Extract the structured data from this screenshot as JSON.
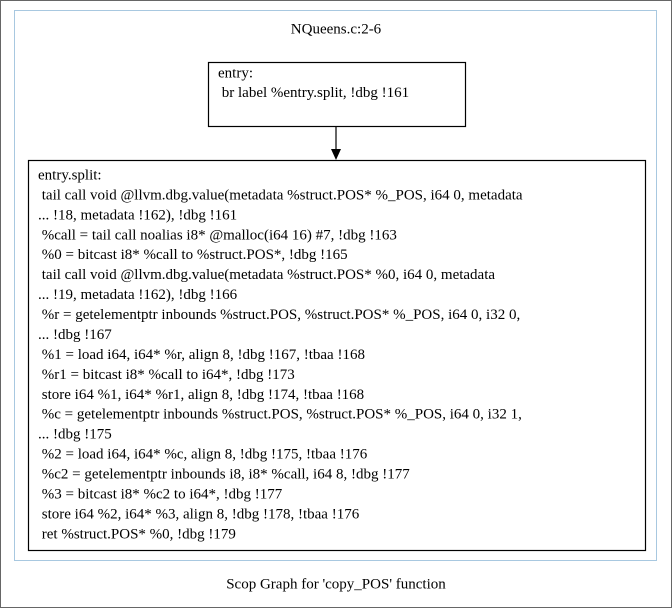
{
  "cluster": {
    "label": "NQueens.c:2-6"
  },
  "nodes": [
    {
      "lines": [
        "entry:",
        " br label %entry.split, !dbg !161"
      ]
    },
    {
      "lines": [
        "entry.split:",
        " tail call void @llvm.dbg.value(metadata %struct.POS* %_POS, i64 0, metadata",
        "... !18, metadata !162), !dbg !161",
        " %call = tail call noalias i8* @malloc(i64 16) #7, !dbg !163",
        " %0 = bitcast i8* %call to %struct.POS*, !dbg !165",
        " tail call void @llvm.dbg.value(metadata %struct.POS* %0, i64 0, metadata",
        "... !19, metadata !162), !dbg !166",
        " %r = getelementptr inbounds %struct.POS, %struct.POS* %_POS, i64 0, i32 0,",
        "... !dbg !167",
        " %1 = load i64, i64* %r, align 8, !dbg !167, !tbaa !168",
        " %r1 = bitcast i8* %call to i64*, !dbg !173",
        " store i64 %1, i64* %r1, align 8, !dbg !174, !tbaa !168",
        " %c = getelementptr inbounds %struct.POS, %struct.POS* %_POS, i64 0, i32 1,",
        "... !dbg !175",
        " %2 = load i64, i64* %c, align 8, !dbg !175, !tbaa !176",
        " %c2 = getelementptr inbounds i8, i8* %call, i64 8, !dbg !177",
        " %3 = bitcast i8* %c2 to i64*, !dbg !177",
        " store i64 %2, i64* %3, align 8, !dbg !178, !tbaa !176",
        " ret %struct.POS* %0, !dbg !179"
      ]
    }
  ],
  "caption": "Scop Graph for 'copy_POS' function"
}
